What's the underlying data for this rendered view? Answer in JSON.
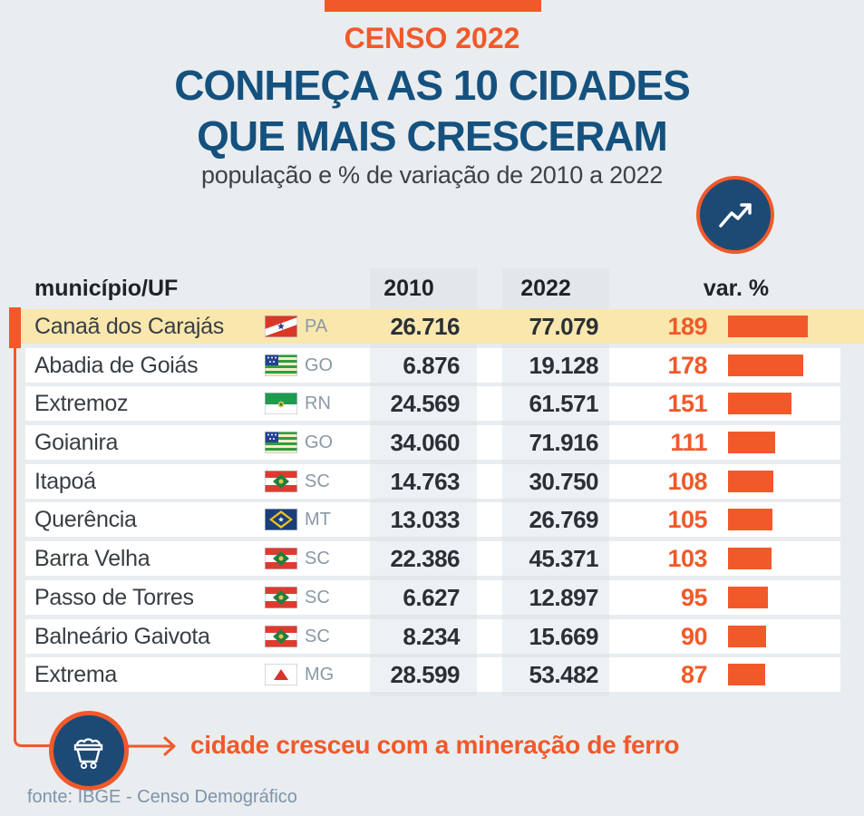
{
  "header": {
    "kicker": "CENSO 2022",
    "title_line1": "CONHEÇA AS 10 CIDADES",
    "title_line2": "QUE MAIS CRESCERAM",
    "subtitle": "população e % de variação de 2010 a 2022"
  },
  "colors": {
    "accent_orange": "#F1592A",
    "title_blue": "#15517E",
    "badge_blue": "#1C4A74",
    "page_bg": "#E9EDF0",
    "highlight_yellow": "#FAE7AE",
    "row_white": "#FFFFFF",
    "uf_gray": "#8A99A6",
    "source_gray": "#7E93A9"
  },
  "icons": {
    "trend": "trend-up-icon",
    "cart": "mine-cart-icon"
  },
  "table": {
    "columns": {
      "city": "município/UF",
      "y2010": "2010",
      "y2022": "2022",
      "var": "var. %"
    },
    "rows": [
      {
        "city": "Canaã dos Carajás",
        "uf": "PA",
        "pop2010": "26.716",
        "pop2022": "77.079",
        "var": 189,
        "highlight": true
      },
      {
        "city": "Abadia de Goiás",
        "uf": "GO",
        "pop2010": "6.876",
        "pop2022": "19.128",
        "var": 178,
        "highlight": false
      },
      {
        "city": "Extremoz",
        "uf": "RN",
        "pop2010": "24.569",
        "pop2022": "61.571",
        "var": 151,
        "highlight": false
      },
      {
        "city": "Goianira",
        "uf": "GO",
        "pop2010": "34.060",
        "pop2022": "71.916",
        "var": 111,
        "highlight": false
      },
      {
        "city": "Itapoá",
        "uf": "SC",
        "pop2010": "14.763",
        "pop2022": "30.750",
        "var": 108,
        "highlight": false
      },
      {
        "city": "Querência",
        "uf": "MT",
        "pop2010": "13.033",
        "pop2022": "26.769",
        "var": 105,
        "highlight": false
      },
      {
        "city": "Barra Velha",
        "uf": "SC",
        "pop2010": "22.386",
        "pop2022": "45.371",
        "var": 103,
        "highlight": false
      },
      {
        "city": "Passo de Torres",
        "uf": "SC",
        "pop2010": "6.627",
        "pop2022": "12.897",
        "var": 95,
        "highlight": false
      },
      {
        "city": "Balneário Gaivota",
        "uf": "SC",
        "pop2010": "8.234",
        "pop2022": "15.669",
        "var": 90,
        "highlight": false
      },
      {
        "city": "Extrema",
        "uf": "MG",
        "pop2010": "28.599",
        "pop2022": "53.482",
        "var": 87,
        "highlight": false
      }
    ]
  },
  "flags": {
    "PA": {
      "field": "#DB3727",
      "band": "#FFFFFF",
      "star": "#2B3F8E"
    },
    "GO": {
      "green": "#2E9E41",
      "cream": "#F5ECC8",
      "canton": "#24408F",
      "stars": "#FFFFFF"
    },
    "RN": {
      "green": "#1F9B4E",
      "white": "#FFFFFF",
      "emblem": "#E4C34D",
      "emblem2": "#2E7D3B"
    },
    "SC": {
      "red": "#DD3B30",
      "white": "#FFFFFF",
      "diamond": "#207F3F",
      "emblem": "#E4C34D"
    },
    "MT": {
      "blue": "#1A3E7A",
      "diamond": "#EFC31E",
      "star": "#FFFFFF"
    },
    "MG": {
      "white": "#FFFFFF",
      "triangle": "#D7352C"
    }
  },
  "callout": {
    "text": "cidade cresceu com a mineração de ferro"
  },
  "footer": {
    "source": "fonte: IBGE - Censo Demográfico"
  },
  "chart_data": {
    "type": "bar",
    "title": "CENSO 2022 — CONHEÇA AS 10 CIDADES QUE MAIS CRESCERAM",
    "subtitle": "população e % de variação de 2010 a 2022",
    "categories": [
      "Canaã dos Carajás (PA)",
      "Abadia de Goiás (GO)",
      "Extremoz (RN)",
      "Goianira (GO)",
      "Itapoá (SC)",
      "Querência (MT)",
      "Barra Velha (SC)",
      "Passo de Torres (SC)",
      "Balneário Gaivota (SC)",
      "Extrema (MG)"
    ],
    "series": [
      {
        "name": "população 2010",
        "values": [
          26716,
          6876,
          24569,
          34060,
          14763,
          13033,
          22386,
          6627,
          8234,
          28599
        ]
      },
      {
        "name": "população 2022",
        "values": [
          77079,
          19128,
          61571,
          71916,
          30750,
          26769,
          45371,
          12897,
          15669,
          53482
        ]
      },
      {
        "name": "var. %",
        "values": [
          189,
          178,
          151,
          111,
          108,
          105,
          103,
          95,
          90,
          87
        ]
      }
    ],
    "bar_series": "var. %",
    "xlim": [
      0,
      189
    ],
    "orientation": "horizontal",
    "grid": false,
    "legend_position": "none",
    "annotations": [
      "cidade cresceu com a mineração de ferro (Canaã dos Carajás)"
    ],
    "source": "fonte: IBGE - Censo Demográfico"
  }
}
